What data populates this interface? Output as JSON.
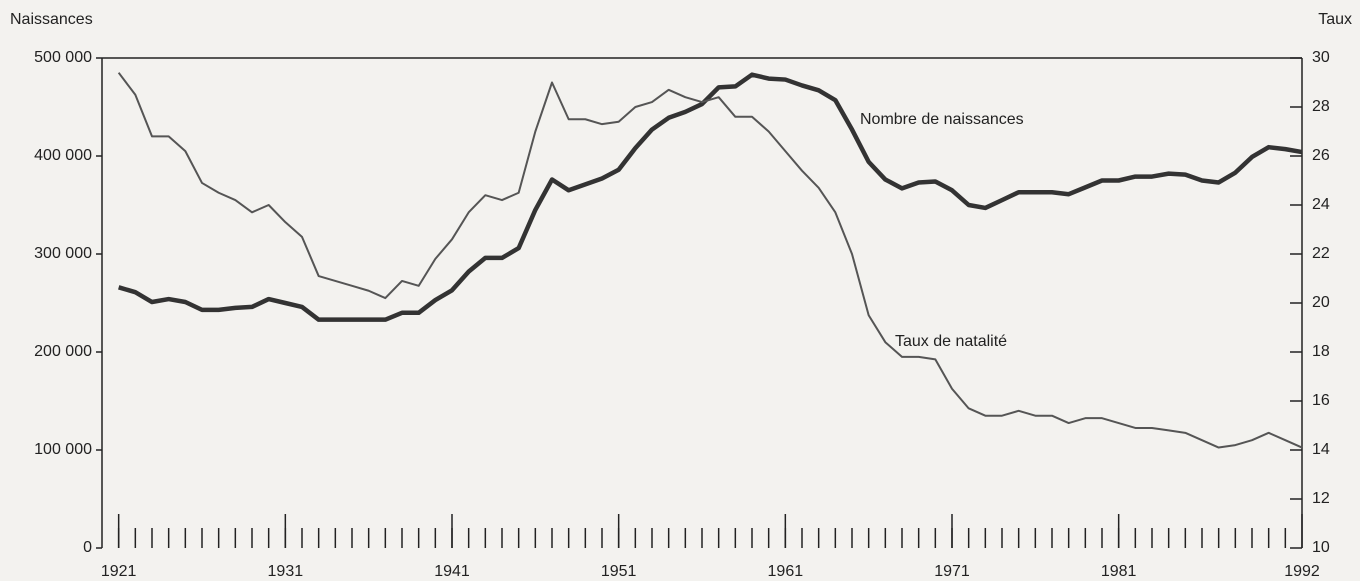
{
  "chart_data": {
    "type": "line",
    "y_axis_label": "Naissances",
    "y2_axis_label": "Taux",
    "annotations": [
      "Nombre de naissances",
      "Taux de natalité"
    ],
    "x": [
      1921,
      1922,
      1923,
      1924,
      1925,
      1926,
      1927,
      1928,
      1929,
      1930,
      1931,
      1932,
      1933,
      1934,
      1935,
      1936,
      1937,
      1938,
      1939,
      1940,
      1941,
      1942,
      1943,
      1944,
      1945,
      1946,
      1947,
      1948,
      1949,
      1950,
      1951,
      1952,
      1953,
      1954,
      1955,
      1956,
      1957,
      1958,
      1959,
      1960,
      1961,
      1962,
      1963,
      1964,
      1965,
      1966,
      1967,
      1968,
      1969,
      1970,
      1971,
      1972,
      1973,
      1974,
      1975,
      1976,
      1977,
      1978,
      1979,
      1980,
      1981,
      1982,
      1983,
      1984,
      1985,
      1986,
      1987,
      1988,
      1989,
      1990,
      1991,
      1992
    ],
    "series": [
      {
        "name": "Nombre de naissances",
        "color": "#333333",
        "axis": "y",
        "values": [
          266000,
          261000,
          251000,
          254000,
          251000,
          243000,
          243000,
          245000,
          246000,
          254000,
          250000,
          246000,
          233000,
          233000,
          233000,
          233000,
          233000,
          240000,
          240000,
          253000,
          263000,
          282000,
          296000,
          296000,
          306000,
          345000,
          376000,
          365000,
          371000,
          377000,
          386000,
          408000,
          427000,
          439000,
          445000,
          453000,
          470000,
          471000,
          483000,
          479000,
          478000,
          472000,
          467000,
          457000,
          427000,
          394000,
          376000,
          367000,
          373000,
          374000,
          365000,
          350000,
          347000,
          355000,
          363000,
          363000,
          363000,
          361000,
          368000,
          375000,
          375000,
          379000,
          379000,
          382000,
          381000,
          375000,
          373000,
          383000,
          399000,
          409000,
          407000,
          404000
        ]
      },
      {
        "name": "Taux de natalité",
        "color": "#555555",
        "axis": "y2",
        "values": [
          29.4,
          28.5,
          26.8,
          26.8,
          26.2,
          24.9,
          24.5,
          24.2,
          23.7,
          24.0,
          23.3,
          22.7,
          21.1,
          20.9,
          20.7,
          20.5,
          20.2,
          20.9,
          20.7,
          21.8,
          22.6,
          23.7,
          24.4,
          24.2,
          24.5,
          27.0,
          29.0,
          27.5,
          27.5,
          27.3,
          27.4,
          28.0,
          28.2,
          28.7,
          28.4,
          28.2,
          28.4,
          27.6,
          27.6,
          27.0,
          26.2,
          25.4,
          24.7,
          23.7,
          22.0,
          19.5,
          18.4,
          17.8,
          17.8,
          17.7,
          16.5,
          15.7,
          15.4,
          15.4,
          15.6,
          15.4,
          15.4,
          15.1,
          15.3,
          15.3,
          15.1,
          14.9,
          14.9,
          14.8,
          14.7,
          14.4,
          14.1,
          14.2,
          14.4,
          14.7,
          14.4,
          14.1
        ]
      }
    ],
    "xlim": [
      1920,
      1992
    ],
    "xticks": [
      1921,
      1931,
      1941,
      1951,
      1961,
      1971,
      1981,
      1992
    ],
    "ylim": [
      0,
      500000
    ],
    "yticks": [
      0,
      {
        "value": 100000,
        "label": "100 000"
      },
      {
        "value": 200000,
        "label": "200 000"
      },
      {
        "value": 300000,
        "label": "300 000"
      },
      {
        "value": 400000,
        "label": "400 000"
      },
      {
        "value": 500000,
        "label": "500 000"
      }
    ],
    "y2lim": [
      10,
      30
    ],
    "y2ticks": [
      10,
      12,
      14,
      16,
      18,
      20,
      22,
      24,
      26,
      28,
      30
    ]
  }
}
